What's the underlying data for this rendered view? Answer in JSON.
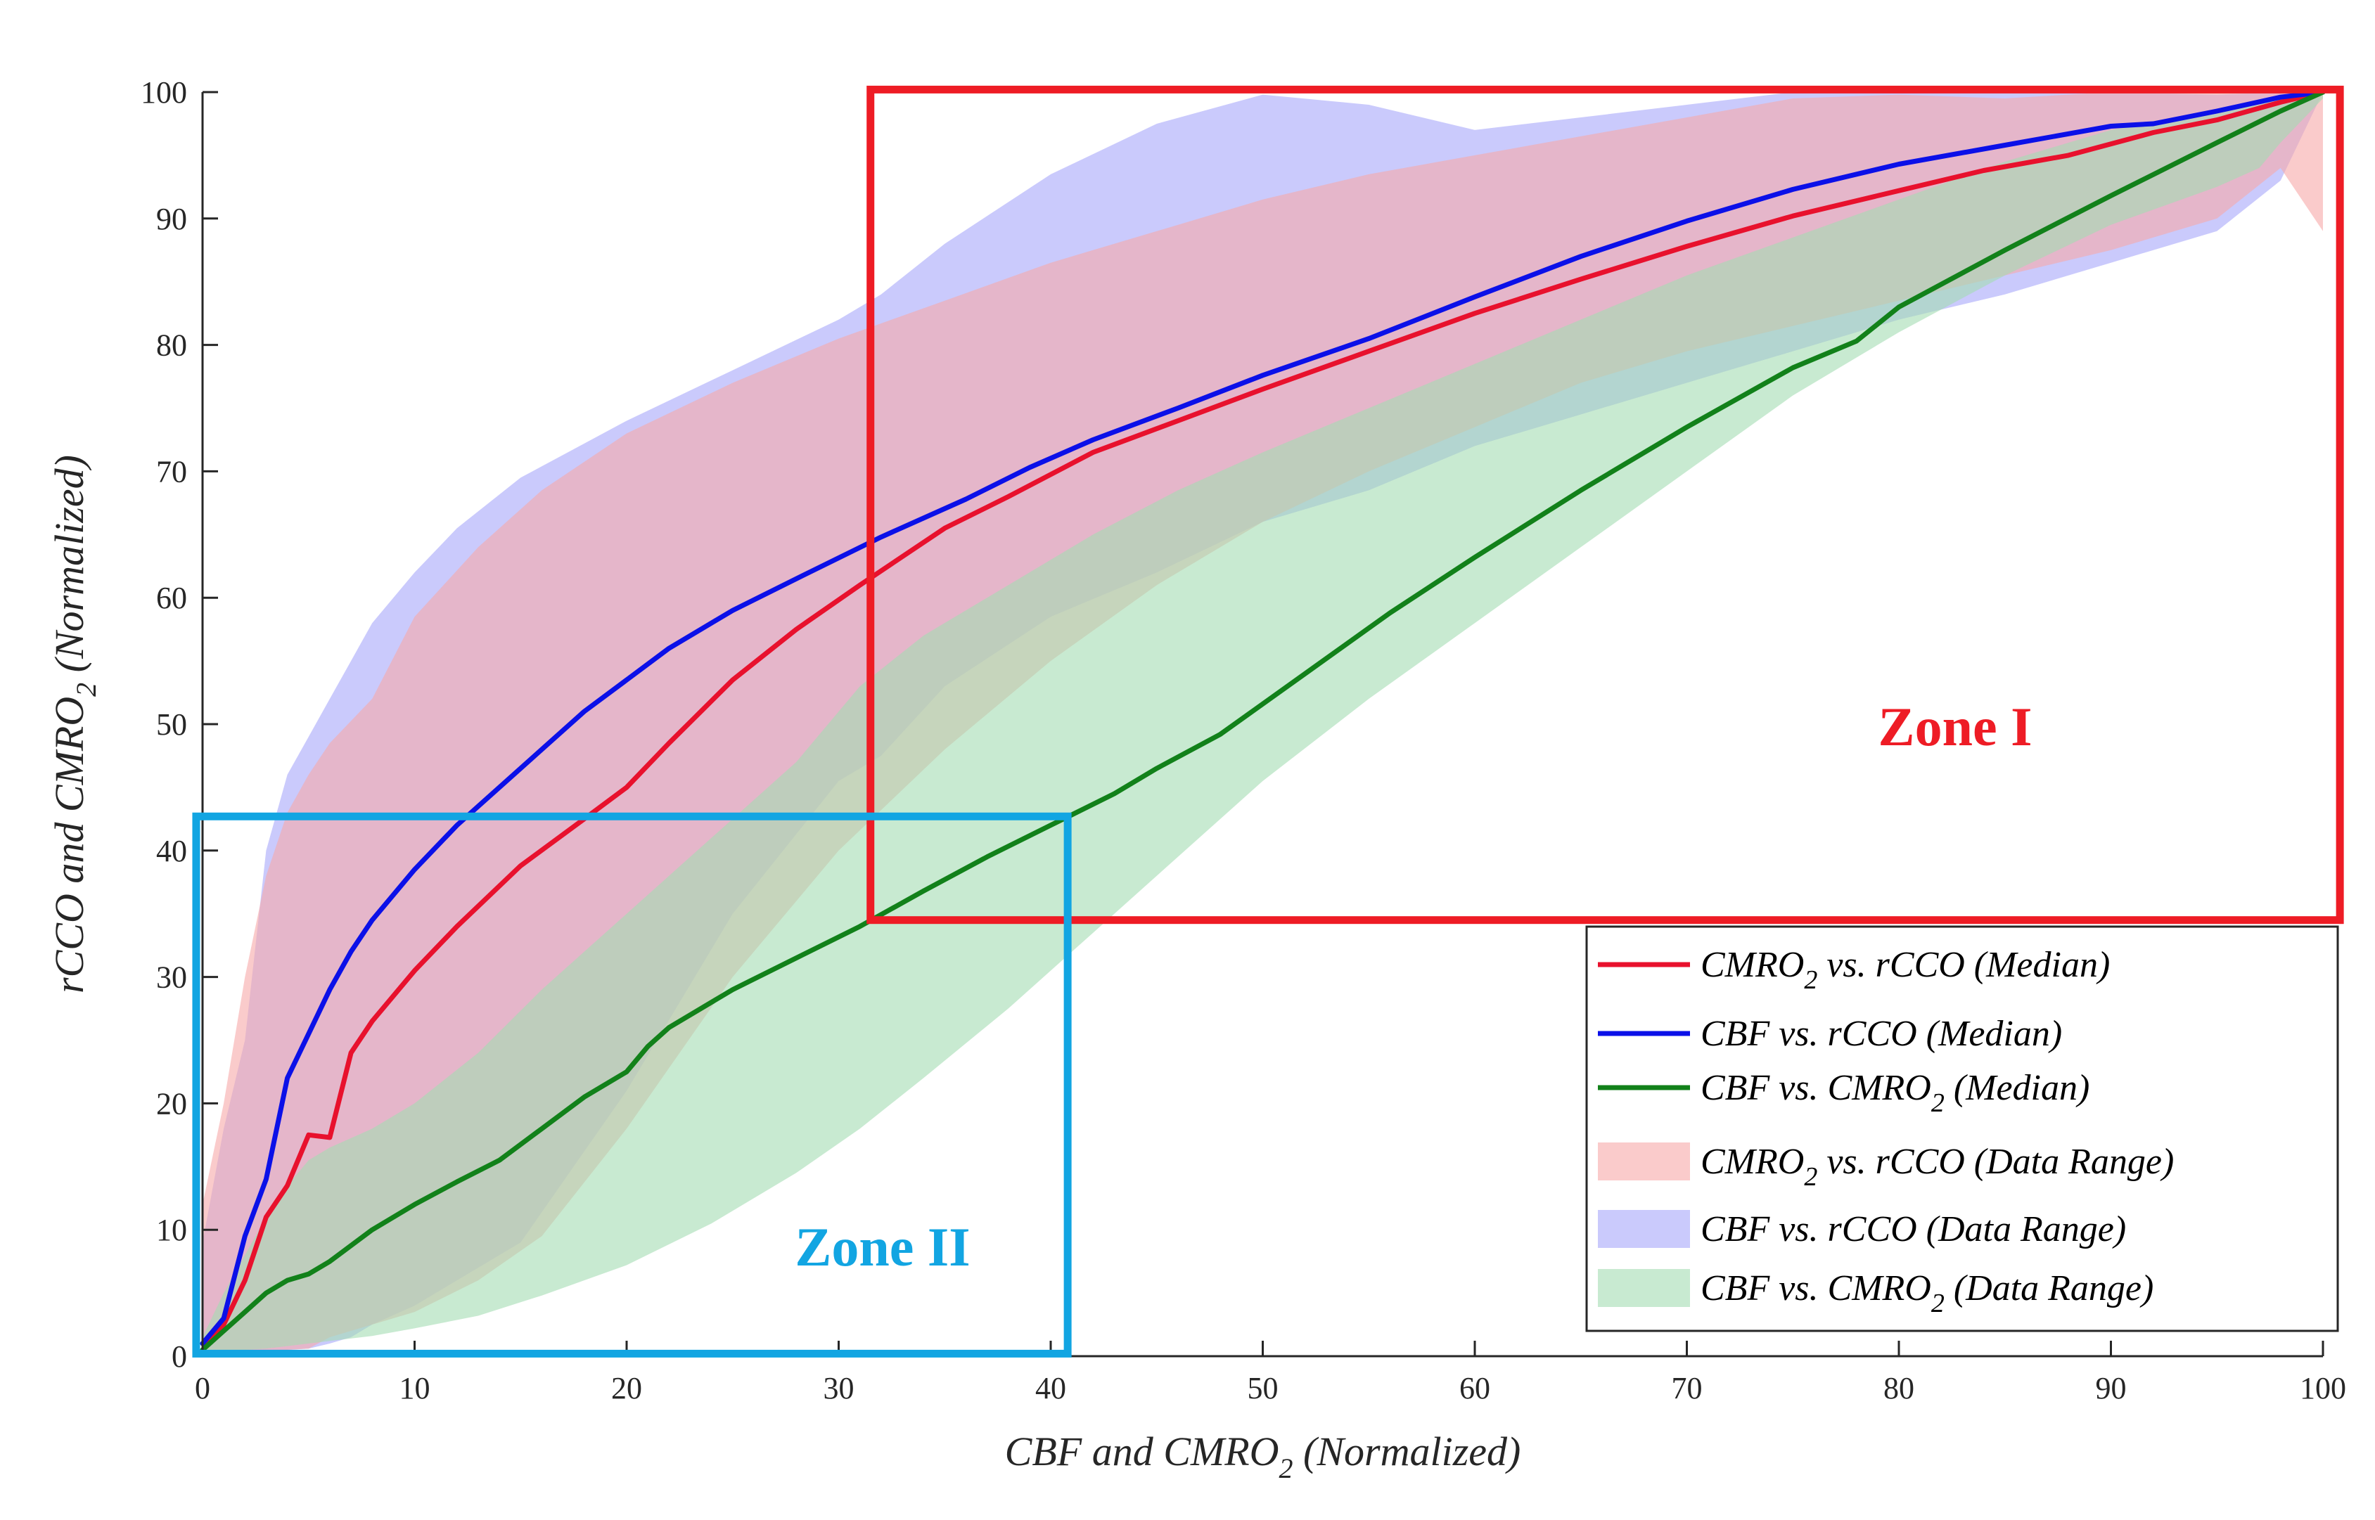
{
  "chart_data": {
    "type": "line",
    "title": "",
    "xlabel": {
      "main": "CBF and CMRO",
      "sub": "2",
      "tail": " (Normalized)"
    },
    "ylabel": {
      "main": "rCCO and CMRO",
      "sub": "2",
      "tail": " (Normalized)"
    },
    "xlim": [
      0,
      100
    ],
    "ylim": [
      0,
      100
    ],
    "xticks": [
      "0",
      "10",
      "20",
      "30",
      "40",
      "50",
      "60",
      "70",
      "80",
      "90",
      "100"
    ],
    "yticks": [
      "0",
      "10",
      "20",
      "30",
      "40",
      "50",
      "60",
      "70",
      "80",
      "90",
      "100"
    ],
    "grid": false,
    "legend_position": "lower-right",
    "colors": {
      "cmro2_rcco": "#e8112d",
      "cbf_rcco": "#0b10e8",
      "cbf_cmro2": "#12811a",
      "cmro2_rcco_range": "#f6a8a8",
      "cbf_rcco_range": "#a6a6fa",
      "cbf_cmro2_range": "#a3dcb2",
      "zone1": "#ee1c25",
      "zone2": "#12a5e2"
    },
    "series": [
      {
        "key": "cmro2_rcco",
        "name": "CMRO2 vs. rCCO (Median)",
        "x": [
          0,
          1,
          2,
          3,
          4,
          5,
          6,
          7,
          8,
          10,
          12,
          15,
          18,
          20,
          22,
          25,
          28,
          31,
          35,
          38,
          42,
          46,
          50,
          55,
          60,
          65,
          70,
          75,
          80,
          84,
          88,
          92,
          95,
          98,
          100
        ],
        "y": [
          1,
          2.5,
          6,
          11,
          13.5,
          17.5,
          17.3,
          24,
          26.5,
          30.5,
          34,
          38.8,
          42.5,
          45,
          48.5,
          53.5,
          57.5,
          61,
          65.5,
          68,
          71.5,
          74,
          76.5,
          79.5,
          82.5,
          85.2,
          87.8,
          90.2,
          92.2,
          93.8,
          95,
          96.8,
          97.8,
          99.2,
          100
        ]
      },
      {
        "key": "cbf_rcco",
        "name": "CBF vs. rCCO (Median)",
        "x": [
          0,
          1,
          2,
          3,
          4,
          5,
          6,
          7,
          8,
          10,
          12,
          15,
          18,
          20,
          22,
          25,
          28,
          32,
          36,
          39,
          42,
          46,
          50,
          55,
          60,
          65,
          70,
          75,
          80,
          85,
          90,
          92,
          95,
          98,
          100
        ],
        "y": [
          1,
          3,
          9.5,
          14,
          22,
          25.5,
          29,
          32,
          34.5,
          38.5,
          42,
          46.5,
          51,
          53.5,
          56,
          59,
          61.5,
          64.8,
          67.8,
          70.3,
          72.5,
          75,
          77.6,
          80.5,
          83.8,
          87,
          89.8,
          92.3,
          94.3,
          95.8,
          97.3,
          97.5,
          98.5,
          99.6,
          100
        ]
      },
      {
        "key": "cbf_cmro2",
        "name": "CBF vs. CMRO2 (Median)",
        "x": [
          0,
          1,
          2,
          3,
          4,
          5,
          6,
          8,
          10,
          12,
          14,
          16,
          18,
          20,
          21,
          22,
          25,
          28,
          31,
          34,
          37,
          40,
          43,
          45,
          48,
          52,
          56,
          60,
          65,
          70,
          75,
          78,
          80,
          85,
          90,
          95,
          98,
          100
        ],
        "y": [
          0.5,
          2,
          3.5,
          5,
          6,
          6.5,
          7.5,
          10,
          12,
          13.8,
          15.5,
          18,
          20.5,
          22.5,
          24.5,
          26,
          29,
          31.5,
          34,
          36.8,
          39.5,
          42,
          44.5,
          46.5,
          49.2,
          54,
          58.8,
          63.2,
          68.5,
          73.5,
          78.2,
          80.3,
          83,
          87.5,
          91.8,
          96,
          98.5,
          100
        ]
      }
    ],
    "ranges": [
      {
        "key": "cbf_rcco_range",
        "name": "CBF vs. rCCO (Data Range)",
        "x": [
          0,
          1,
          2,
          3,
          4,
          5,
          6,
          7,
          8,
          10,
          12,
          15,
          20,
          25,
          30,
          32,
          35,
          40,
          45,
          50,
          55,
          60,
          65,
          70,
          75,
          80,
          85,
          90,
          95,
          98,
          100
        ],
        "upper": [
          9,
          18,
          25,
          40,
          46,
          49,
          52,
          55,
          58,
          62,
          65.5,
          69.5,
          74,
          78,
          82,
          84,
          88,
          93.5,
          97.5,
          99.8,
          99,
          97,
          98,
          99,
          100,
          100,
          100,
          100,
          99.8,
          100,
          100
        ],
        "lower": [
          0.5,
          0.5,
          0.5,
          0.5,
          0.5,
          0.6,
          1,
          1.5,
          2.5,
          4,
          6,
          9,
          21,
          35,
          45.5,
          47.5,
          53,
          58.5,
          62,
          66,
          68.5,
          72,
          74.5,
          77,
          79.5,
          82,
          84,
          86.5,
          89,
          93,
          100
        ]
      },
      {
        "key": "cmro2_rcco_range",
        "name": "CMRO2 vs. rCCO (Data Range)",
        "x": [
          0,
          1,
          2,
          3,
          4,
          5,
          6,
          8,
          10,
          13,
          16,
          20,
          25,
          30,
          35,
          40,
          45,
          50,
          55,
          60,
          65,
          70,
          75,
          80,
          85,
          90,
          95,
          98,
          100
        ],
        "upper": [
          12,
          20,
          30,
          38,
          43,
          46,
          48.5,
          52,
          58.5,
          64,
          68.5,
          73,
          77,
          80.5,
          83.5,
          86.5,
          89,
          91.5,
          93.5,
          95,
          96.5,
          98,
          99.5,
          99.8,
          99.5,
          100,
          100,
          100,
          100
        ],
        "lower": [
          0.5,
          0.5,
          0.5,
          0.5,
          0.5,
          0.6,
          1.5,
          2.5,
          3.5,
          6,
          9.5,
          18,
          30,
          40,
          48,
          55,
          61,
          66,
          70,
          73.5,
          77,
          79.5,
          81.5,
          83.5,
          85.5,
          87.5,
          90,
          94,
          89
        ]
      },
      {
        "key": "cbf_cmro2_range",
        "name": "CBF vs. CMRO2 (Data Range)",
        "x": [
          0,
          1,
          2,
          3,
          4,
          5,
          6,
          8,
          10,
          13,
          16,
          20,
          24,
          28,
          31,
          34,
          38,
          42,
          46,
          50,
          55,
          60,
          65,
          70,
          75,
          80,
          85,
          90,
          95,
          97,
          98,
          100
        ],
        "upper": [
          1.5,
          5,
          8,
          11,
          13.5,
          15.5,
          16.5,
          18,
          20,
          24,
          29,
          35,
          41,
          47,
          53,
          57,
          61,
          65,
          68.5,
          71.5,
          75,
          78.5,
          82,
          85.5,
          88.5,
          91.5,
          94.5,
          97,
          98.5,
          99,
          99.5,
          100
        ],
        "lower": [
          0.3,
          0.4,
          0.5,
          0.6,
          0.8,
          1,
          1.2,
          1.6,
          2.2,
          3.2,
          4.8,
          7.2,
          10.5,
          14.5,
          18,
          22,
          27.5,
          33.5,
          39.5,
          45.5,
          52,
          58,
          64,
          70,
          76,
          81,
          85.5,
          89.5,
          92.5,
          94,
          96,
          99.5
        ]
      }
    ],
    "legend": [
      {
        "key": "cmro2_rcco",
        "kind": "line",
        "main": "CMRO",
        "sub": "2",
        "tail": " vs. rCCO (Median)"
      },
      {
        "key": "cbf_rcco",
        "kind": "line",
        "main": "CBF vs. rCCO (Median)",
        "sub": "",
        "tail": ""
      },
      {
        "key": "cbf_cmro2",
        "kind": "line",
        "main": "CBF vs. CMRO",
        "sub": "2",
        "tail": " (Median)"
      },
      {
        "key": "cmro2_rcco_range",
        "kind": "patch",
        "main": "CMRO",
        "sub": "2",
        "tail": " vs. rCCO (Data Range)"
      },
      {
        "key": "cbf_rcco_range",
        "kind": "patch",
        "main": "CBF vs. rCCO (Data Range)",
        "sub": "",
        "tail": ""
      },
      {
        "key": "cbf_cmro2_range",
        "kind": "patch",
        "main": "CBF vs. CMRO",
        "sub": "2",
        "tail": " (Data Range)"
      }
    ],
    "annotations": [
      {
        "key": "zone1",
        "label": "Zone I",
        "x_range": [
          31.5,
          100.8
        ],
        "y_range": [
          34.5,
          100.2
        ]
      },
      {
        "key": "zone2",
        "label": "Zone II",
        "x_range": [
          -0.3,
          40.8
        ],
        "y_range": [
          0.2,
          42.7
        ]
      }
    ]
  }
}
